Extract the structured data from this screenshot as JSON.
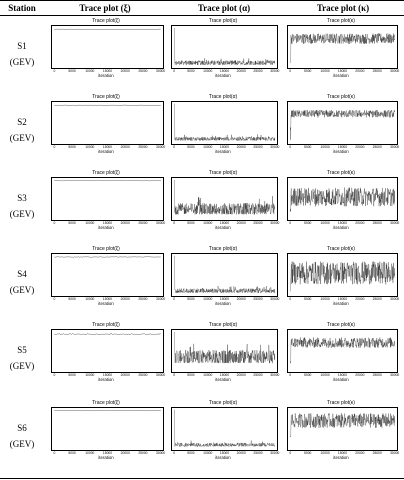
{
  "header": {
    "col_station": "Station",
    "col_xi": "Trace plot (ξ)",
    "col_alpha": "Trace plot (α)",
    "col_kappa": "Trace plot (κ)"
  },
  "panel_titles": {
    "xi": "Trace plot(ξ)",
    "alpha": "Trace plot(α)",
    "kappa": "Trace plot(κ)"
  },
  "x_axis": {
    "label": "iteration",
    "ticks": [
      "0",
      "5000",
      "10000",
      "15000",
      "20000",
      "25000",
      "30000"
    ]
  },
  "rows": [
    {
      "station": "S1",
      "dist": "(GEV)"
    },
    {
      "station": "S2",
      "dist": "(GEV)"
    },
    {
      "station": "S3",
      "dist": "(GEV)"
    },
    {
      "station": "S4",
      "dist": "(GEV)"
    },
    {
      "station": "S5",
      "dist": "(GEV)"
    },
    {
      "station": "S6",
      "dist": "(GEV)"
    }
  ],
  "colors": {
    "line": "#000000",
    "rule": "#000000"
  },
  "chart_data": {
    "type": "line",
    "description_free": true,
    "x_range": [
      0,
      30000
    ],
    "panels_per_row": [
      "xi",
      "alpha",
      "kappa"
    ],
    "trace_levels": {
      "xi": [
        0.92,
        0.92,
        0.94,
        0.93,
        0.9,
        0.94
      ],
      "alpha": [
        0.12,
        0.12,
        0.25,
        0.12,
        0.35,
        0.12
      ],
      "kappa": [
        0.7,
        0.72,
        0.55,
        0.55,
        0.7,
        0.7
      ]
    },
    "trace_spread": {
      "xi": [
        0.015,
        0.015,
        0.02,
        0.015,
        0.03,
        0.015
      ],
      "alpha": [
        0.12,
        0.1,
        0.3,
        0.12,
        0.35,
        0.1
      ],
      "kappa": [
        0.25,
        0.18,
        0.45,
        0.55,
        0.25,
        0.35
      ]
    }
  }
}
